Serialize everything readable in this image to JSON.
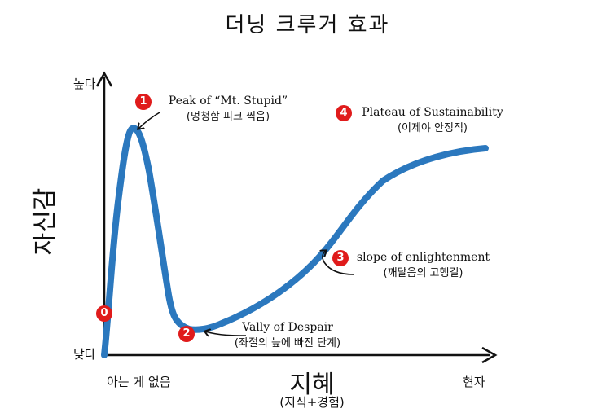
{
  "title": "더닝 크루거 효과",
  "y_axis": {
    "title": "자신감",
    "high_label": "높다",
    "low_label": "낮다"
  },
  "x_axis": {
    "title": "지혜",
    "subtitle": "(지식+경험)",
    "start_label": "아는 게 없음",
    "end_label": "현자"
  },
  "annotations": [
    {
      "number": "0"
    },
    {
      "number": "1",
      "en": "Peak of “Mt. Stupid”",
      "ko": "(멍청함 피크 찍음)"
    },
    {
      "number": "2",
      "en": "Vally of Despair",
      "ko": "(좌절의 늪에 빠진 단계)"
    },
    {
      "number": "3",
      "en": "slope of enlightenment",
      "ko": "(깨달음의 고행길)"
    },
    {
      "number": "4",
      "en": "Plateau of Sustainability",
      "ko": "(이제야 안정적)"
    }
  ],
  "colors": {
    "curve": "#2b78be",
    "badge": "#e01b1b",
    "axis": "#111111"
  }
}
